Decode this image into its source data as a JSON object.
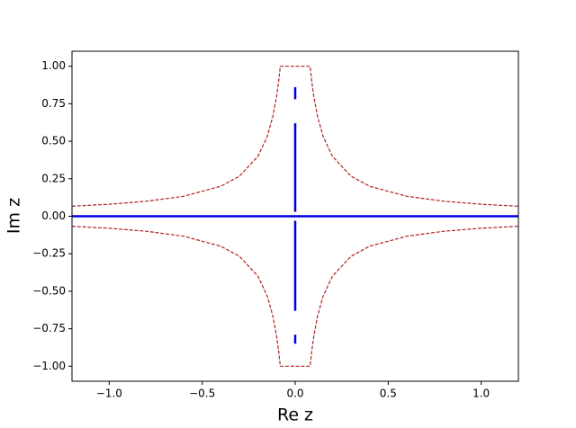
{
  "chart_data": {
    "type": "line",
    "x_label": "Re z",
    "y_label": "Im z",
    "xlim": [
      -1.2,
      1.2
    ],
    "ylim": [
      -1.1,
      1.1
    ],
    "xticks": [
      {
        "value": -1.0,
        "label": "−1.0"
      },
      {
        "value": -0.5,
        "label": "−0.5"
      },
      {
        "value": 0,
        "label": "0.0"
      },
      {
        "value": 0.5,
        "label": "0.5"
      },
      {
        "value": 1.0,
        "label": "1.0"
      }
    ],
    "yticks": [
      {
        "value": -1.0,
        "label": "−1.00"
      },
      {
        "value": -0.75,
        "label": "−0.75"
      },
      {
        "value": -0.5,
        "label": "−0.50"
      },
      {
        "value": -0.25,
        "label": "−0.25"
      },
      {
        "value": 0,
        "label": "0.00"
      },
      {
        "value": 0.25,
        "label": "0.25"
      },
      {
        "value": 0.5,
        "label": "0.50"
      },
      {
        "value": 0.75,
        "label": "0.75"
      },
      {
        "value": 1.0,
        "label": "1.00"
      }
    ],
    "grid": false,
    "series": [
      {
        "color": "#b22222",
        "dashed": true,
        "x": [
          -1.2,
          -1.0,
          -0.8,
          -0.6,
          -0.4,
          -0.3,
          -0.2,
          -0.15,
          -0.12,
          -0.1,
          -0.09,
          -0.08,
          0.08,
          0.09,
          0.1,
          0.12,
          0.15,
          0.2,
          0.3,
          0.4,
          0.6,
          0.8,
          1.0,
          1.2
        ],
        "values": [
          0.067,
          0.08,
          0.1,
          0.133,
          0.2,
          0.267,
          0.4,
          0.533,
          0.667,
          0.8,
          0.889,
          1.0,
          1.0,
          0.889,
          0.8,
          0.667,
          0.533,
          0.4,
          0.267,
          0.2,
          0.133,
          0.1,
          0.08,
          0.067
        ]
      },
      {
        "color": "#b22222",
        "dashed": true,
        "x": [
          -1.2,
          -1.0,
          -0.8,
          -0.6,
          -0.4,
          -0.3,
          -0.2,
          -0.15,
          -0.12,
          -0.1,
          -0.09,
          -0.08,
          0.08,
          0.09,
          0.1,
          0.12,
          0.15,
          0.2,
          0.3,
          0.4,
          0.6,
          0.8,
          1.0,
          1.2
        ],
        "values": [
          -0.067,
          -0.08,
          -0.1,
          -0.133,
          -0.2,
          -0.267,
          -0.4,
          -0.533,
          -0.667,
          -0.8,
          -0.889,
          -1.0,
          -1.0,
          -0.889,
          -0.8,
          -0.667,
          -0.533,
          -0.4,
          -0.267,
          -0.2,
          -0.133,
          -0.1,
          -0.08,
          -0.067
        ]
      },
      {
        "color": "#0000dd",
        "dashed": false,
        "x": [
          -1.2,
          1.2
        ],
        "values": [
          0,
          0
        ]
      },
      {
        "color": "#0000dd",
        "dashed": false,
        "x": [
          0,
          0,
          0,
          0,
          0,
          0,
          0,
          0,
          0,
          0,
          0
        ],
        "values": [
          -0.85,
          -0.79,
          null,
          -0.63,
          -0.03,
          null,
          0.03,
          0.62,
          null,
          0.78,
          0.86
        ]
      }
    ]
  }
}
